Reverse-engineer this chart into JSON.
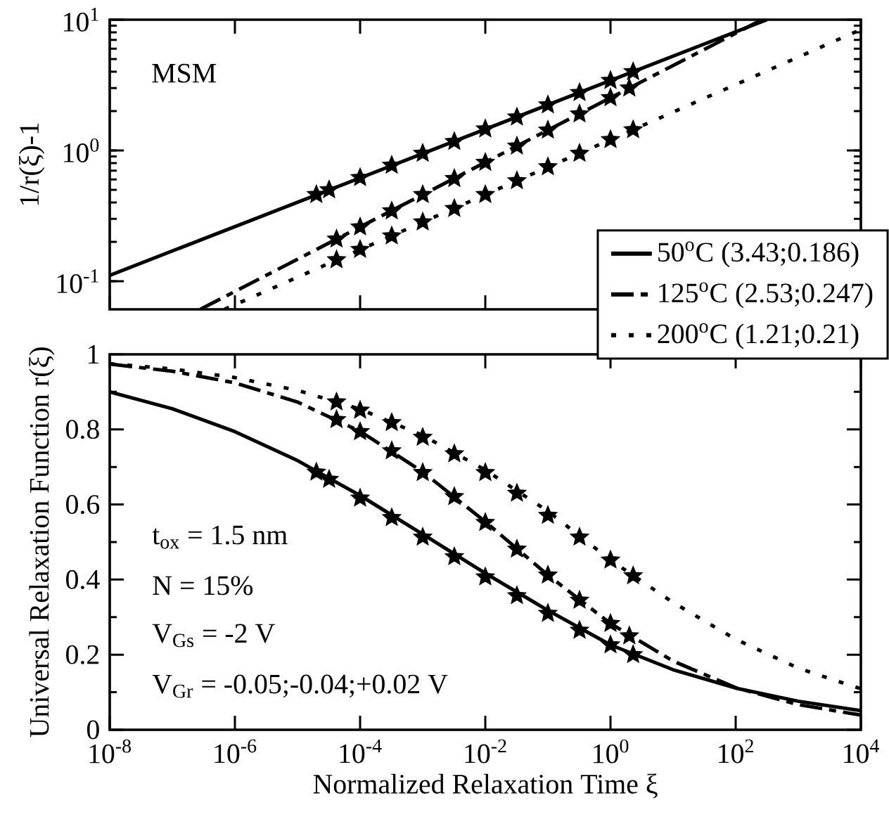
{
  "chart_data": [
    {
      "type": "line",
      "ylabel": "1/r(ξ)-1",
      "annotations": [
        "MSM"
      ],
      "log": "xy",
      "xlim": [
        1e-08,
        10000
      ],
      "ylim": [
        0.061,
        10
      ],
      "xticks": [
        {
          "value": 1e-08,
          "label": null
        },
        {
          "value": 1e-06,
          "label": null
        },
        {
          "value": 0.0001,
          "label": null
        },
        {
          "value": 0.01,
          "label": null
        },
        {
          "value": 1,
          "label": null
        },
        {
          "value": 100,
          "label": null
        },
        {
          "value": 10000,
          "label": null
        }
      ],
      "yticks": [
        {
          "value": 0.1,
          "label": "10$^{-1}$"
        },
        {
          "value": 1,
          "label": "10$^{0}$"
        },
        {
          "value": 10,
          "label": "10$^{1}$"
        }
      ],
      "tick_labels": "y",
      "series": [
        {
          "type": "scatter",
          "marker": "star",
          "color": "#000000",
          "x": [
            2e-05,
            3.2e-05,
            0.0001,
            0.00032,
            0.001,
            0.0032,
            0.01,
            0.032,
            0.1,
            0.32,
            1,
            2.3
          ],
          "values": [
            0.46,
            0.5,
            0.62,
            0.77,
            0.95,
            1.17,
            1.46,
            1.8,
            2.23,
            2.77,
            3.43,
            4.0
          ]
        },
        {
          "type": "scatter",
          "marker": "star",
          "color": "#000000",
          "x": [
            4.2e-05,
            0.0001,
            0.00032,
            0.001,
            0.0032,
            0.01,
            0.032,
            0.1,
            0.32,
            1,
            2.0
          ],
          "values": [
            0.21,
            0.26,
            0.345,
            0.46,
            0.61,
            0.81,
            1.08,
            1.43,
            1.9,
            2.53,
            3.0
          ]
        },
        {
          "type": "scatter",
          "marker": "star",
          "color": "#000000",
          "x": [
            4.2e-05,
            0.0001,
            0.00032,
            0.001,
            0.0032,
            0.01,
            0.032,
            0.1,
            0.32,
            1,
            2.3
          ],
          "values": [
            0.146,
            0.175,
            0.222,
            0.284,
            0.36,
            0.46,
            0.587,
            0.75,
            0.95,
            1.21,
            1.44
          ]
        },
        {
          "type": "line",
          "line_style": "solid",
          "color": "#000000",
          "x": [
            1e-08,
            316
          ],
          "values": [
            0.111,
            10
          ]
        },
        {
          "type": "line",
          "line_style": "dashed",
          "color": "#000000",
          "x": [
            2.8e-07,
            263
          ],
          "values": [
            0.061,
            10
          ]
        },
        {
          "type": "line",
          "line_style": "dotted",
          "color": "#000000",
          "x": [
            6.8e-07,
            10000
          ],
          "values": [
            0.061,
            8.4
          ]
        }
      ]
    },
    {
      "type": "line",
      "xlabel": "Normalized Relaxation Time  ξ",
      "ylabel": "Universal Relaxation Function  r(ξ)",
      "annotations": [
        "t$_{ox}$     = 1.5 nm",
        "N       = 15%",
        "V$_{Gs}$    = -2 V",
        "V$_{Gr}$    = -0.05;-0.04;+0.02 V"
      ],
      "log": "x",
      "xlim": [
        1e-08,
        10000
      ],
      "ylim": [
        0,
        1
      ],
      "xticks": [
        {
          "value": 1e-08,
          "label": "10$^{-8}$"
        },
        {
          "value": 1e-06,
          "label": "10$^{-6}$"
        },
        {
          "value": 0.0001,
          "label": "10$^{-4}$"
        },
        {
          "value": 0.01,
          "label": "10$^{-2}$"
        },
        {
          "value": 1,
          "label": "10$^{0}$"
        },
        {
          "value": 100,
          "label": "10$^{2}$"
        },
        {
          "value": 10000,
          "label": "10$^{4}$"
        }
      ],
      "yticks": [
        0,
        0.2,
        0.4,
        0.6,
        0.8,
        1
      ],
      "legend": "top right",
      "series": [
        {
          "type": "scatter",
          "marker": "star",
          "color": "#000000",
          "x": [
            2e-05,
            3.2e-05,
            0.0001,
            0.00032,
            0.001,
            0.0032,
            0.01,
            0.032,
            0.1,
            0.32,
            1,
            2.3
          ],
          "values": [
            0.686,
            0.667,
            0.617,
            0.565,
            0.513,
            0.461,
            0.407,
            0.357,
            0.31,
            0.265,
            0.226,
            0.2
          ]
        },
        {
          "type": "scatter",
          "marker": "star",
          "color": "#000000",
          "x": [
            4.2e-05,
            0.0001,
            0.00032,
            0.001,
            0.0032,
            0.01,
            0.032,
            0.1,
            0.32,
            1,
            2.0
          ],
          "values": [
            0.826,
            0.794,
            0.743,
            0.685,
            0.621,
            0.552,
            0.481,
            0.412,
            0.345,
            0.283,
            0.25
          ]
        },
        {
          "type": "scatter",
          "marker": "star",
          "color": "#000000",
          "x": [
            4.2e-05,
            0.0001,
            0.00032,
            0.001,
            0.0032,
            0.01,
            0.032,
            0.1,
            0.32,
            1,
            2.3
          ],
          "values": [
            0.873,
            0.851,
            0.818,
            0.779,
            0.735,
            0.685,
            0.63,
            0.571,
            0.513,
            0.452,
            0.41
          ]
        },
        {
          "type": "line",
          "name": "50$^{o}$C (3.43;0.186)",
          "line_style": "solid",
          "color": "#000000",
          "x": [
            1e-08,
            1e-07,
            1e-06,
            1e-05,
            0.0001,
            0.001,
            0.01,
            0.1,
            1,
            10,
            100,
            1000,
            10000
          ],
          "values": [
            0.9,
            0.855,
            0.794,
            0.717,
            0.624,
            0.521,
            0.417,
            0.318,
            0.226,
            0.16,
            0.111,
            0.076,
            0.051
          ]
        },
        {
          "type": "line",
          "name": "125$^{o}$C (2.53;0.247)",
          "line_style": "dashed",
          "color": "#000000",
          "x": [
            1e-08,
            1e-07,
            1e-06,
            1e-05,
            0.0001,
            0.001,
            0.01,
            0.1,
            1,
            10,
            100,
            1000,
            10000
          ],
          "values": [
            0.974,
            0.955,
            0.924,
            0.873,
            0.795,
            0.687,
            0.554,
            0.412,
            0.283,
            0.183,
            0.112,
            0.067,
            0.039
          ]
        },
        {
          "type": "line",
          "name": "200$^{o}$C (1.21;0.21)",
          "line_style": "dotted",
          "color": "#000000",
          "x": [
            1e-08,
            1e-07,
            1e-06,
            1e-05,
            0.0001,
            0.001,
            0.01,
            0.1,
            1,
            10,
            100,
            1000,
            10000
          ],
          "values": [
            0.975,
            0.961,
            0.938,
            0.904,
            0.854,
            0.784,
            0.692,
            0.582,
            0.452,
            0.339,
            0.241,
            0.164,
            0.109
          ]
        }
      ]
    }
  ]
}
